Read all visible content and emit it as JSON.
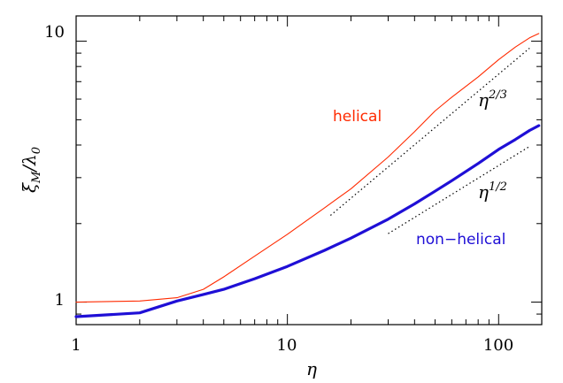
{
  "chart_data": {
    "type": "line",
    "xscale": "log",
    "yscale": "log",
    "xlim": [
      1,
      160
    ],
    "ylim": [
      0.82,
      12.5
    ],
    "xlabel": "η",
    "ylabel": {
      "main": "ξ",
      "sub": "M",
      "rest": "/λ",
      "sub2": "0"
    },
    "x_ticks": [
      {
        "value": 1,
        "label": "1"
      },
      {
        "value": 10,
        "label": "10"
      },
      {
        "value": 100,
        "label": "100"
      }
    ],
    "y_ticks": [
      {
        "value": 1,
        "label": "1"
      },
      {
        "value": 10,
        "label": "10"
      }
    ],
    "grid": false,
    "series": [
      {
        "name": "helical",
        "color": "#ff2a00",
        "x": [
          1,
          2,
          3,
          4,
          5,
          7,
          10,
          15,
          20,
          30,
          40,
          50,
          60,
          80,
          100,
          120,
          140,
          155
        ],
        "y": [
          1.0,
          1.01,
          1.04,
          1.12,
          1.25,
          1.5,
          1.82,
          2.3,
          2.72,
          3.6,
          4.5,
          5.4,
          6.1,
          7.3,
          8.5,
          9.5,
          10.3,
          10.7
        ]
      },
      {
        "name": "non-helical",
        "color": "#1f0fd6",
        "x": [
          1,
          2,
          3,
          4,
          5,
          7,
          10,
          15,
          20,
          30,
          40,
          50,
          60,
          80,
          100,
          120,
          140,
          155
        ],
        "y": [
          0.88,
          0.91,
          1.01,
          1.07,
          1.12,
          1.23,
          1.37,
          1.58,
          1.76,
          2.08,
          2.38,
          2.66,
          2.92,
          3.4,
          3.85,
          4.2,
          4.55,
          4.75
        ]
      }
    ],
    "reference_lines": [
      {
        "label_base": "η",
        "label_exp": "2/3",
        "x": [
          16,
          140
        ],
        "y": [
          2.15,
          9.4
        ]
      },
      {
        "label_base": "η",
        "label_exp": "1/2",
        "x": [
          30,
          140
        ],
        "y": [
          1.83,
          3.95
        ]
      }
    ],
    "annotations": [
      {
        "text": "helical",
        "color": "#ff2a00"
      },
      {
        "text": "non−helical",
        "color": "#1f0fd6"
      }
    ]
  }
}
